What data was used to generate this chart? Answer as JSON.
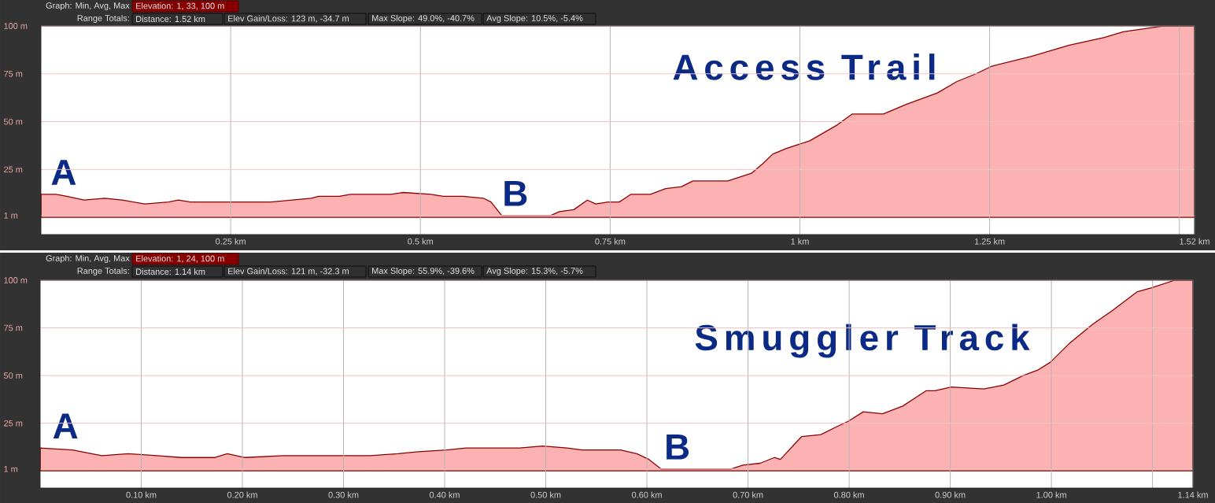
{
  "chart_data": [
    {
      "type": "area",
      "title": "Access Trail",
      "annotations": [
        "Graph: Min, Avg, Max",
        "Elevation: 1, 33, 100 m",
        "Range Totals:",
        "Distance: 1.52 km",
        "Elev Gain/Loss: 123 m, -34.7 m",
        "Max Slope: 49.0%, -40.7%",
        "Avg Slope: 10.5%, -5.4%",
        {
          "text": "A",
          "x": 0.03,
          "y": 12
        },
        {
          "text": "B",
          "x": 0.625,
          "y": 1
        }
      ],
      "x": [
        0,
        0.02,
        0.034,
        0.057,
        0.084,
        0.107,
        0.137,
        0.168,
        0.181,
        0.197,
        0.24,
        0.303,
        0.356,
        0.366,
        0.393,
        0.408,
        0.435,
        0.461,
        0.477,
        0.514,
        0.53,
        0.556,
        0.583,
        0.593,
        0.607,
        0.617,
        0.622,
        0.672,
        0.683,
        0.702,
        0.72,
        0.731,
        0.747,
        0.762,
        0.777,
        0.803,
        0.823,
        0.844,
        0.859,
        0.905,
        0.936,
        0.951,
        0.964,
        0.982,
        1.013,
        1.048,
        1.069,
        1.11,
        1.14,
        1.181,
        1.207,
        1.232,
        1.253,
        1.304,
        1.355,
        1.401,
        1.426,
        1.462,
        1.48,
        1.52
      ],
      "values": [
        12,
        12,
        11,
        9,
        10,
        9,
        7,
        8,
        9,
        8,
        8,
        8,
        10,
        11,
        11,
        12,
        12,
        12,
        13,
        12,
        11,
        11,
        10,
        8,
        1,
        1,
        1,
        1,
        3,
        4,
        9,
        7,
        8,
        8,
        12,
        12,
        15,
        16,
        19,
        19,
        23,
        28,
        33,
        36,
        40,
        48,
        54,
        54,
        59,
        65,
        71,
        75,
        79,
        84,
        90,
        94,
        97,
        99,
        100,
        100
      ],
      "color": "#8b0000",
      "xlim": [
        0,
        1.52
      ],
      "ylim": [
        -9,
        100
      ],
      "xticks": [
        {
          "value": 0.25,
          "label": "0.25 km"
        },
        {
          "value": 0.5,
          "label": "0.5 km"
        },
        {
          "value": 0.75,
          "label": "0.75 km"
        },
        {
          "value": 1,
          "label": "1 km"
        },
        {
          "value": 1.25,
          "label": "1.25 km"
        },
        {
          "value": 1.5,
          "label": null
        },
        {
          "value": 1.52,
          "label": "1.52 km"
        }
      ],
      "yticks": [
        {
          "value": 1,
          "label": "1 m"
        },
        {
          "value": 25,
          "label": "25 m"
        },
        {
          "value": 50,
          "label": "50 m"
        },
        {
          "value": 75,
          "label": "75 m"
        },
        {
          "value": 100,
          "label": "100 m"
        }
      ],
      "grid": true
    },
    {
      "type": "area",
      "title": "Smuggler Track",
      "annotations": [
        "Graph: Min, Avg, Max",
        "Elevation: 1, 24, 100 m",
        "Range Totals:",
        "Distance: 1.14 km",
        "Elev Gain/Loss: 121 m, -32.3 m",
        "Max Slope: 55.9%, -39.6%",
        "Avg Slope: 15.3%, -5.7%",
        {
          "text": "A",
          "x": 0.025,
          "y": 12
        },
        {
          "text": "B",
          "x": 0.63,
          "y": 1
        }
      ],
      "x": [
        0,
        0.032,
        0.061,
        0.087,
        0.116,
        0.14,
        0.173,
        0.185,
        0.202,
        0.24,
        0.278,
        0.326,
        0.354,
        0.374,
        0.402,
        0.421,
        0.44,
        0.474,
        0.497,
        0.521,
        0.536,
        0.56,
        0.574,
        0.59,
        0.602,
        0.614,
        0.63,
        0.683,
        0.695,
        0.712,
        0.726,
        0.732,
        0.753,
        0.772,
        0.787,
        0.799,
        0.814,
        0.833,
        0.853,
        0.876,
        0.885,
        0.901,
        0.933,
        0.953,
        0.972,
        0.987,
        0.999,
        1.018,
        1.041,
        1.06,
        1.085,
        1.099,
        1.122,
        1.14
      ],
      "values": [
        12,
        11,
        8,
        9,
        8,
        7,
        7,
        9,
        7,
        8,
        8,
        8,
        9,
        10,
        11,
        12,
        12,
        12,
        13,
        12,
        11,
        11,
        11,
        9,
        6,
        1,
        1,
        1,
        3,
        4,
        7,
        6,
        18,
        19,
        23,
        26,
        31,
        30,
        34,
        42,
        42,
        44,
        43,
        45,
        50,
        53,
        57,
        67,
        77,
        84,
        94,
        96,
        100,
        100
      ],
      "color": "#8b0000",
      "xlim": [
        0,
        1.14
      ],
      "ylim": [
        -9,
        100
      ],
      "xticks": [
        {
          "value": 0.1,
          "label": "0.10 km"
        },
        {
          "value": 0.2,
          "label": "0.20 km"
        },
        {
          "value": 0.3,
          "label": "0.30 km"
        },
        {
          "value": 0.4,
          "label": "0.40 km"
        },
        {
          "value": 0.5,
          "label": "0.50 km"
        },
        {
          "value": 0.6,
          "label": "0.60 km"
        },
        {
          "value": 0.7,
          "label": "0.70 km"
        },
        {
          "value": 0.8,
          "label": "0.80 km"
        },
        {
          "value": 0.9,
          "label": "0.90 km"
        },
        {
          "value": 1,
          "label": "1.00 km"
        },
        {
          "value": 1.1,
          "label": null
        },
        {
          "value": 1.14,
          "label": "1.14 km"
        }
      ],
      "yticks": [
        {
          "value": 1,
          "label": "1 m"
        },
        {
          "value": 25,
          "label": "25 m"
        },
        {
          "value": 50,
          "label": "50 m"
        },
        {
          "value": 75,
          "label": "75 m"
        },
        {
          "value": 100,
          "label": "100 m"
        }
      ],
      "grid": true
    }
  ]
}
